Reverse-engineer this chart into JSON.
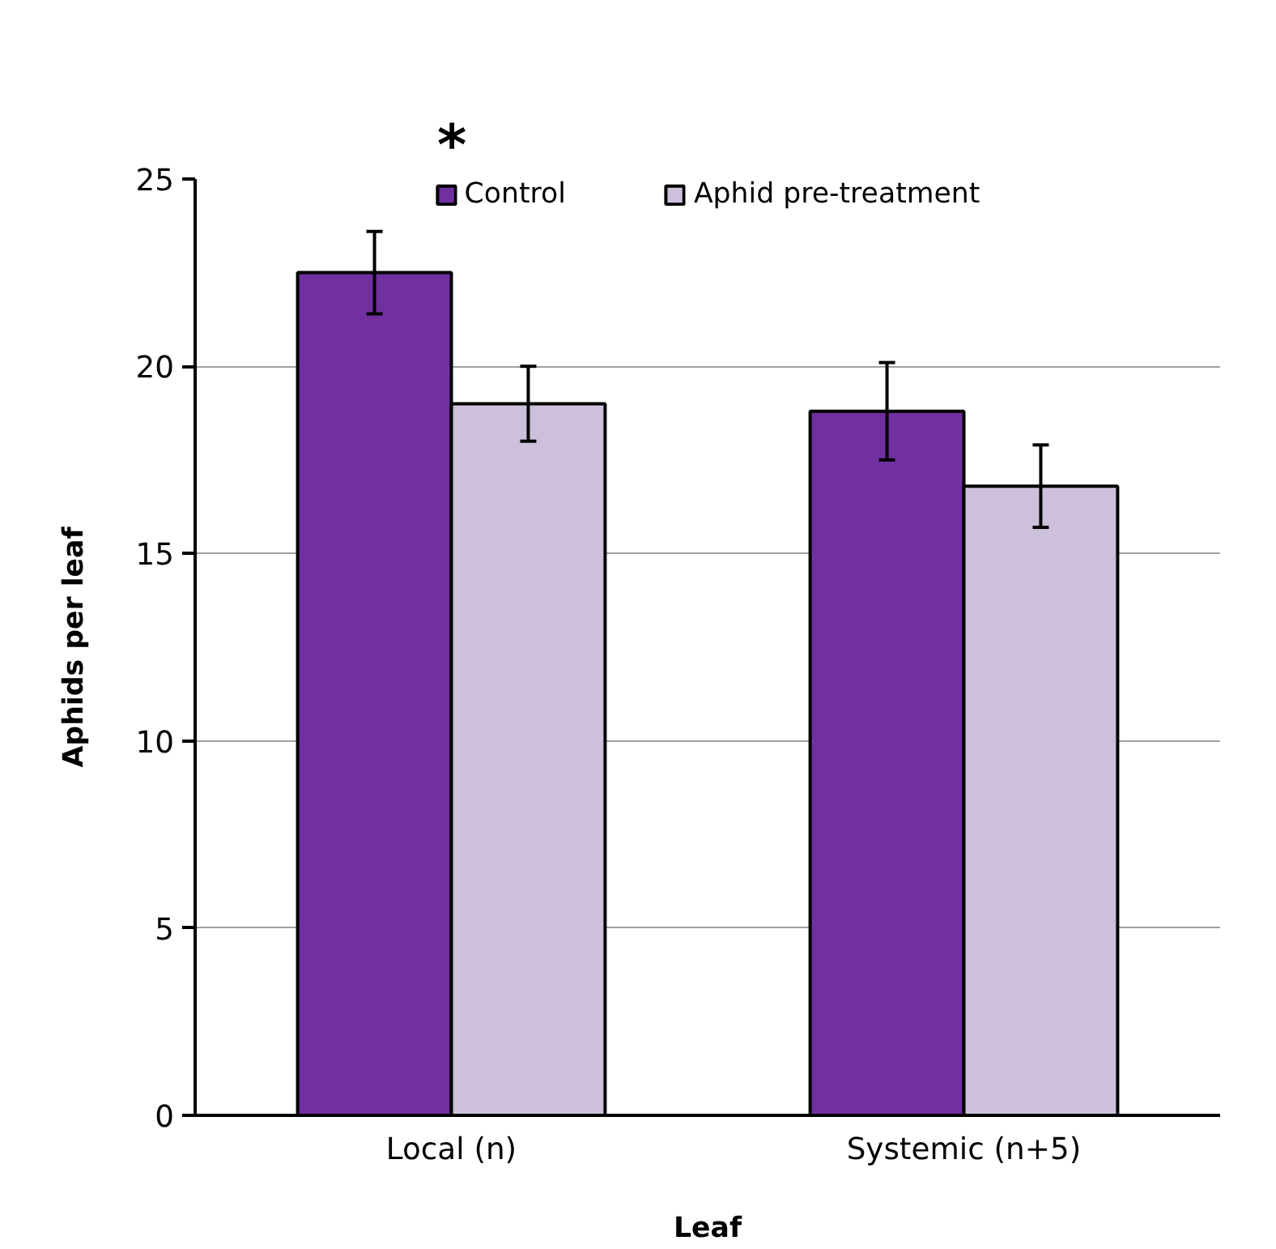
{
  "chart_data": {
    "type": "bar",
    "xlabel": "Leaf",
    "ylabel": "Aphids per leaf",
    "categories": [
      "Local (n)",
      "Systemic (n+5)"
    ],
    "series": [
      {
        "name": "Control",
        "color": "#7030a0",
        "values": [
          22.5,
          18.8
        ],
        "errors": [
          1.1,
          1.3
        ]
      },
      {
        "name": "Aphid pre-treatment",
        "color": "#ccc0da",
        "values": [
          19.0,
          16.8
        ],
        "errors": [
          1.0,
          1.1
        ]
      }
    ],
    "ylim": [
      0,
      25
    ],
    "yticks": [
      0,
      5,
      10,
      15,
      20,
      25
    ],
    "grid": "y",
    "legend": "top",
    "annotations": [
      "*"
    ]
  }
}
